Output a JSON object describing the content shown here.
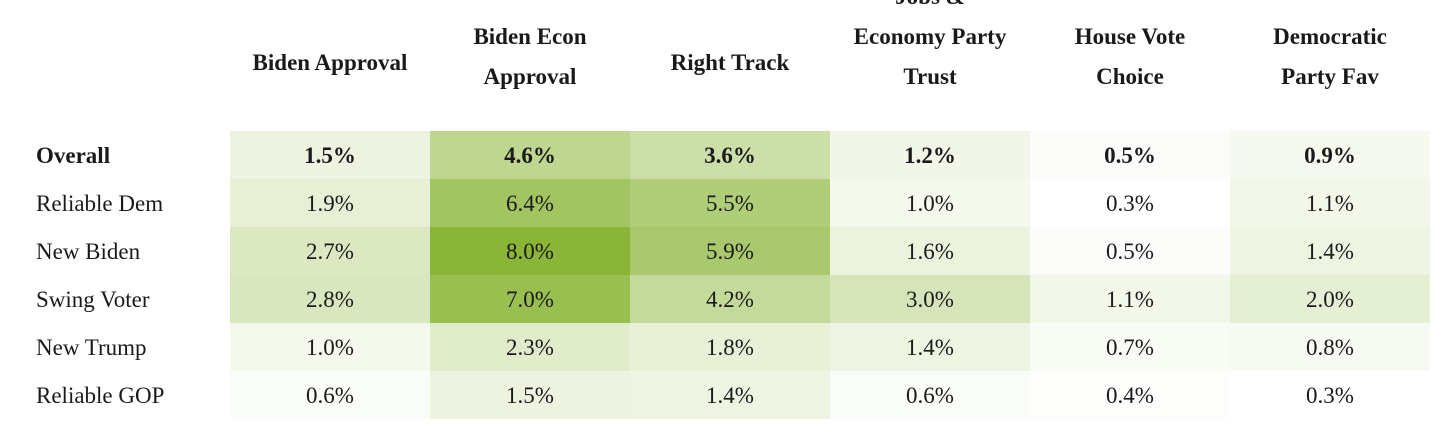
{
  "chart_data": {
    "type": "heatmap",
    "columns": [
      [
        "Biden Approval"
      ],
      [
        "Biden Econ",
        "Approval"
      ],
      [
        "Right Track"
      ],
      [
        "Jobs &",
        "Economy Party",
        "Trust"
      ],
      [
        "House Vote",
        "Choice"
      ],
      [
        "Democratic",
        "Party Fav"
      ]
    ],
    "rows": [
      "Overall",
      "Reliable Dem",
      "New Biden",
      "Swing Voter",
      "New Trump",
      "Reliable GOP"
    ],
    "bold_rows": [
      "Overall"
    ],
    "values": [
      [
        1.5,
        4.6,
        3.6,
        1.2,
        0.5,
        0.9
      ],
      [
        1.9,
        6.4,
        5.5,
        1.0,
        0.3,
        1.1
      ],
      [
        2.7,
        8.0,
        5.9,
        1.6,
        0.5,
        1.4
      ],
      [
        2.8,
        7.0,
        4.2,
        3.0,
        1.1,
        2.0
      ],
      [
        1.0,
        2.3,
        1.8,
        1.4,
        0.7,
        0.8
      ],
      [
        0.6,
        1.5,
        1.4,
        0.6,
        0.4,
        0.3
      ]
    ],
    "labels": [
      [
        "1.5%",
        "4.6%",
        "3.6%",
        "1.2%",
        "0.5%",
        "0.9%"
      ],
      [
        "1.9%",
        "6.4%",
        "5.5%",
        "1.0%",
        "0.3%",
        "1.1%"
      ],
      [
        "2.7%",
        "8.0%",
        "5.9%",
        "1.6%",
        "0.5%",
        "1.4%"
      ],
      [
        "2.8%",
        "7.0%",
        "4.2%",
        "3.0%",
        "1.1%",
        "2.0%"
      ],
      [
        "1.0%",
        "2.3%",
        "1.8%",
        "1.4%",
        "0.7%",
        "0.8%"
      ],
      [
        "0.6%",
        "1.5%",
        "1.4%",
        "0.6%",
        "0.4%",
        "0.3%"
      ]
    ],
    "value_unit": "%",
    "color_scale": {
      "low": "#ffffff",
      "high": "#8ab537",
      "domain": [
        0.3,
        8.0
      ]
    }
  }
}
